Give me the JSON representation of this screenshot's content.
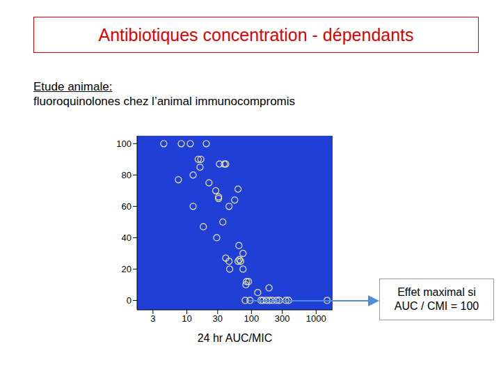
{
  "title": "Antibiotiques concentration - dépendants",
  "subtitle": [
    "Etude animale:",
    "fluoroquinolones chez l’animal immunocompromis"
  ],
  "annotation": [
    "Effet maximal si",
    "AUC / CMI = 100"
  ],
  "chart_data": {
    "type": "scatter",
    "x_label": "24 hr AUC/MIC",
    "x": [
      4.4,
      8.2,
      11.3,
      20,
      15,
      16.5,
      16,
      32,
      38,
      40,
      7.4,
      12.5,
      22,
      28,
      31,
      31,
      62,
      55,
      45,
      12.5,
      18,
      36,
      29,
      64,
      74,
      40,
      45,
      65,
      62,
      68,
      46,
      74,
      84,
      90,
      82,
      125,
      187,
      80,
      95,
      140,
      150,
      170,
      190,
      210,
      245,
      270,
      340,
      375,
      1480
    ],
    "values": [
      100,
      100,
      100,
      100,
      90,
      90,
      85,
      87,
      87,
      87,
      77,
      80,
      75,
      70,
      66,
      65,
      71,
      64,
      60,
      60,
      47,
      50,
      40,
      35,
      30,
      27,
      25,
      26,
      25,
      25,
      20,
      20,
      12,
      12,
      10,
      5,
      8,
      0,
      0,
      0,
      0,
      0,
      0,
      0,
      0,
      0,
      0,
      0,
      0
    ],
    "color": "#ece6b0",
    "background": "#1f3fd6",
    "marker": "circle",
    "log": "x",
    "grid": false,
    "xlim": [
      1.7,
      1800
    ],
    "xticks": [
      3,
      10,
      30,
      100,
      300,
      1000
    ],
    "ylim": [
      -6,
      105
    ],
    "yticks": [
      0,
      20,
      40,
      60,
      80,
      100
    ]
  }
}
